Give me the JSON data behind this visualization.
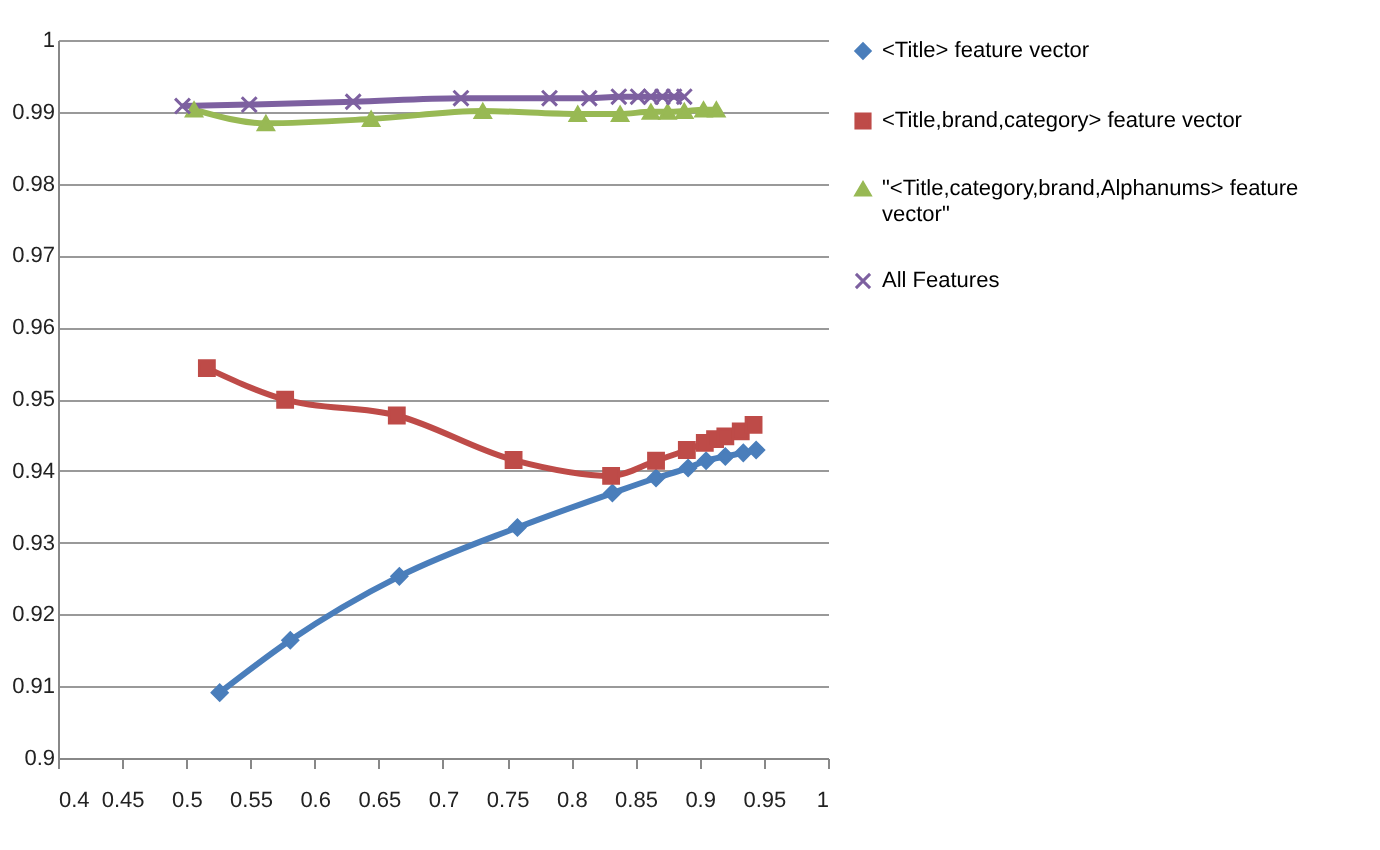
{
  "chart_data": {
    "type": "line",
    "legend": "right",
    "grid": "y",
    "line_style": "solid",
    "xlim": [
      0.4,
      1
    ],
    "xticks": [
      0.4,
      0.45,
      0.5,
      0.55,
      0.6,
      0.65,
      0.7,
      0.75,
      0.8,
      0.85,
      0.9,
      0.95,
      1
    ],
    "ylim": [
      0.9,
      1
    ],
    "yticks": [
      0.9,
      0.91,
      0.92,
      0.93,
      0.94,
      0.95,
      0.96,
      0.97,
      0.98,
      0.99,
      1
    ],
    "series": [
      {
        "name": "<Title> feature vector",
        "color": "#4a7ebb",
        "marker": "diamond",
        "x": [
          0.526,
          0.581,
          0.666,
          0.758,
          0.832,
          0.866,
          0.891,
          0.905,
          0.92,
          0.934,
          0.944
        ],
        "values": [
          0.9091,
          0.9164,
          0.9253,
          0.9321,
          0.9369,
          0.939,
          0.9404,
          0.9414,
          0.942,
          0.9425,
          0.9429
        ]
      },
      {
        "name": "<Title,brand,category> feature vector",
        "color": "#be4b48",
        "marker": "square",
        "x": [
          0.516,
          0.577,
          0.664,
          0.755,
          0.831,
          0.866,
          0.89,
          0.904,
          0.912,
          0.92,
          0.932,
          0.942
        ],
        "values": [
          0.9543,
          0.9499,
          0.9477,
          0.9415,
          0.9393,
          0.9414,
          0.9429,
          0.9439,
          0.9444,
          0.9448,
          0.9455,
          0.9464
        ]
      },
      {
        "name": "\"<Title,category,brand,Alphanums> feature vector\"",
        "color": "#98b954",
        "marker": "triangle",
        "x": [
          0.506,
          0.562,
          0.644,
          0.731,
          0.805,
          0.838,
          0.862,
          0.875,
          0.888,
          0.903,
          0.913
        ],
        "values": [
          0.9903,
          0.9884,
          0.989,
          0.9901,
          0.9897,
          0.9897,
          0.99,
          0.99,
          0.9901,
          0.9903,
          0.9903
        ]
      },
      {
        "name": "All Features",
        "color": "#7d60a0",
        "marker": "cross",
        "x": [
          0.497,
          0.549,
          0.63,
          0.714,
          0.783,
          0.814,
          0.837,
          0.852,
          0.862,
          0.871,
          0.88,
          0.888
        ],
        "values": [
          0.9908,
          0.991,
          0.9914,
          0.9919,
          0.9919,
          0.9919,
          0.9921,
          0.9921,
          0.9921,
          0.9921,
          0.9921,
          0.9921
        ]
      }
    ]
  }
}
